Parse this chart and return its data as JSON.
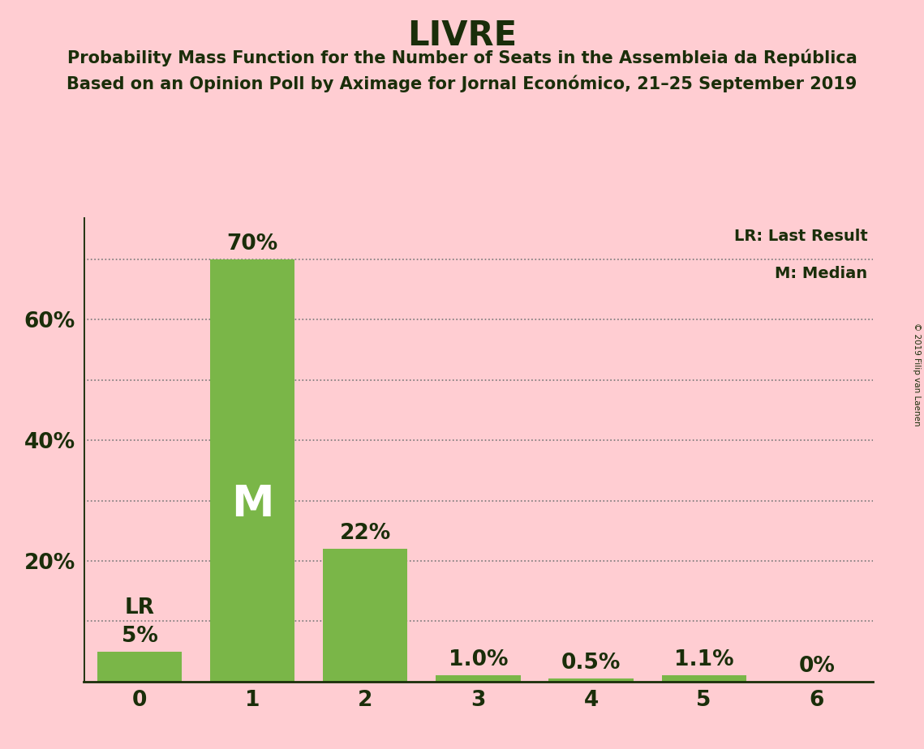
{
  "title": "LIVRE",
  "subtitle1": "Probability Mass Function for the Number of Seats in the Assembleia da República",
  "subtitle2": "Based on an Opinion Poll by Aximage for Jornal Económico, 21–25 September 2019",
  "copyright": "© 2019 Filip van Laenen",
  "categories": [
    0,
    1,
    2,
    3,
    4,
    5,
    6
  ],
  "values": [
    5.0,
    70.0,
    22.0,
    1.0,
    0.5,
    1.1,
    0.0
  ],
  "bar_labels": [
    "5%",
    "70%",
    "22%",
    "1.0%",
    "0.5%",
    "1.1%",
    "0%"
  ],
  "bar_color": "#7ab648",
  "background_color": "#ffcdd2",
  "text_color": "#1a2e0a",
  "title_fontsize": 30,
  "subtitle_fontsize": 15,
  "bar_label_fontsize": 19,
  "axis_label_fontsize": 19,
  "yticks": [
    20,
    40,
    60
  ],
  "ytick_labels": [
    "20%",
    "40%",
    "60%"
  ],
  "dotted_yticks": [
    10,
    20,
    30,
    40,
    50,
    60,
    70
  ],
  "ylim": [
    0,
    77
  ],
  "xlim_left": -0.5,
  "xlim_right": 6.5,
  "median_bar_idx": 1,
  "lr_bar_idx": 0,
  "median_label": "M",
  "lr_label": "LR",
  "legend_lr": "LR: Last Result",
  "legend_m": "M: Median",
  "dotted_color": "#777777",
  "bar_width": 0.75
}
